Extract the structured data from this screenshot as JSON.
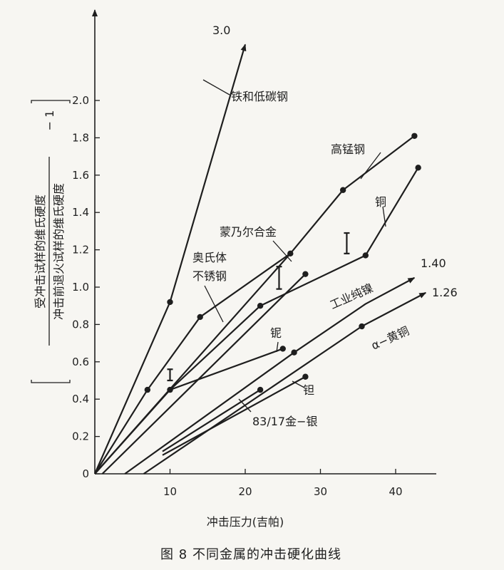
{
  "caption": "图 8   不同金属的冲击硬化曲线",
  "chart_data": {
    "type": "line",
    "xlabel": "冲击压力(吉帕)",
    "ylabel_top": "受冲击试样的维氏硬度",
    "ylabel_bottom": "冲击前退火试样的维氏硬度",
    "ylabel_suffix": "− 1",
    "xlim": [
      0,
      45
    ],
    "ylim": [
      0,
      2.0
    ],
    "x_ticks": [
      "10",
      "20",
      "30",
      "40"
    ],
    "y_ticks": [
      "0",
      "0.2",
      "0.4",
      "0.6",
      "0.8",
      "1.0",
      "1.2",
      "1.4",
      "1.6",
      "1.8",
      "2.0"
    ],
    "series": [
      {
        "name": "铁和低碳钢",
        "points": [
          [
            0,
            0
          ],
          [
            10,
            0.92
          ],
          [
            20,
            2.3
          ]
        ],
        "marker_points": [
          [
            10,
            0.92
          ]
        ],
        "arrow_label": "3.0"
      },
      {
        "name": "高锰钢",
        "points": [
          [
            0,
            0
          ],
          [
            26,
            1.18
          ],
          [
            33,
            1.52
          ],
          [
            42.5,
            1.81
          ]
        ],
        "marker_points": [
          [
            26,
            1.18
          ],
          [
            33,
            1.52
          ],
          [
            42.5,
            1.81
          ]
        ]
      },
      {
        "name": "铜",
        "points": [
          [
            0,
            0
          ],
          [
            10,
            0.45
          ],
          [
            22,
            0.9
          ],
          [
            36,
            1.17
          ],
          [
            43,
            1.64
          ]
        ],
        "marker_points": [
          [
            10,
            0.45
          ],
          [
            22,
            0.9
          ],
          [
            36,
            1.17
          ],
          [
            43,
            1.64
          ]
        ]
      },
      {
        "name": "奥氏体不锈钢",
        "points": [
          [
            0,
            0
          ],
          [
            7,
            0.45
          ],
          [
            14,
            0.84
          ],
          [
            26,
            1.18
          ]
        ],
        "marker_points": [
          [
            7,
            0.45
          ],
          [
            14,
            0.84
          ]
        ]
      },
      {
        "name": "蒙乃尔合金",
        "points": [
          [
            1,
            0
          ],
          [
            28,
            1.07
          ]
        ],
        "marker_points": [
          [
            28,
            1.07
          ]
        ]
      },
      {
        "name": "铌",
        "points": [
          [
            10,
            0.45
          ],
          [
            25,
            0.67
          ]
        ],
        "marker_points": [
          [
            25,
            0.67
          ]
        ]
      },
      {
        "name": "工业纯镍",
        "points": [
          [
            4,
            0
          ],
          [
            26.5,
            0.65
          ],
          [
            36,
            0.91
          ],
          [
            42.5,
            1.05
          ]
        ],
        "marker_points": [
          [
            26.5,
            0.65
          ]
        ],
        "arrow_label": "1.40"
      },
      {
        "name": "α−黄铜",
        "points": [
          [
            6.5,
            0
          ],
          [
            35.5,
            0.79
          ],
          [
            44,
            0.97
          ]
        ],
        "marker_points": [
          [
            35.5,
            0.79
          ]
        ],
        "arrow_label": "1.26"
      },
      {
        "name": "钽",
        "points": [
          [
            9,
            0.1
          ],
          [
            28,
            0.52
          ]
        ],
        "marker_points": [
          [
            28,
            0.52
          ]
        ]
      },
      {
        "name": "83/17金−银",
        "points": [
          [
            9,
            0.12
          ],
          [
            22,
            0.45
          ]
        ],
        "marker_points": [
          [
            22,
            0.45
          ]
        ]
      }
    ],
    "error_bars": [
      {
        "x": 10,
        "low": 0.5,
        "high": 0.56
      },
      {
        "x": 24.5,
        "low": 0.99,
        "high": 1.11
      },
      {
        "x": 33.5,
        "low": 1.18,
        "high": 1.29
      }
    ]
  }
}
